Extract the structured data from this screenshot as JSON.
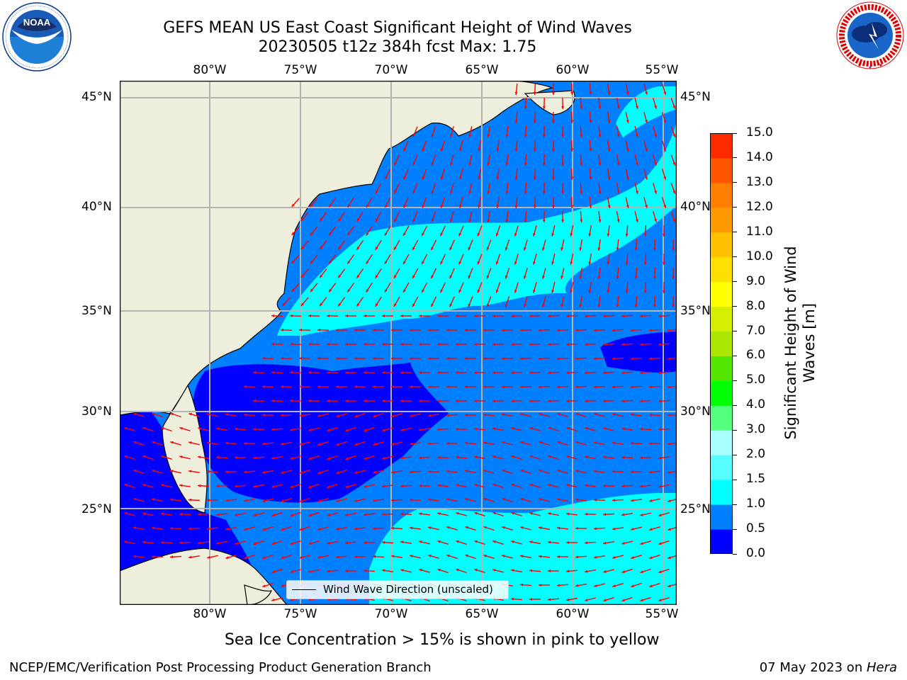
{
  "header": {
    "title_line1": "GEFS MEAN US East Coast Significant Height of Wind Waves",
    "title_line2": "20230505 t12z 384h fcst   Max: 1.75"
  },
  "logos": {
    "left": {
      "name": "NOAA",
      "ring_text": "NATIONAL OCEANIC AND ATMOSPHERIC ADMINISTRATION · U.S. DEPARTMENT OF COMMERCE"
    },
    "right": {
      "name": "NATIONAL WEATHER SERVICE"
    }
  },
  "map": {
    "lon_labels": [
      "80°W",
      "75°W",
      "70°W",
      "65°W",
      "60°W",
      "55°W"
    ],
    "lat_labels": [
      "45°N",
      "40°N",
      "35°N",
      "30°N",
      "25°N"
    ],
    "legend_label": "Wind Wave Direction (unscaled)",
    "colors": {
      "land": "#eeeedc",
      "coast": "#000000",
      "grid": "#b4b4b4",
      "arrow": "#ff0000"
    }
  },
  "colorbar": {
    "title_line1": "Significant Height of Wind",
    "title_line2": "Waves [m]",
    "ticks": [
      "0.0",
      "0.5",
      "1.0",
      "1.5",
      "2.0",
      "3.0",
      "4.0",
      "5.0",
      "6.0",
      "7.0",
      "8.0",
      "9.0",
      "10.0",
      "11.0",
      "12.0",
      "13.0",
      "14.0",
      "15.0"
    ],
    "colors": [
      "#0000ff",
      "#0080ff",
      "#00ffff",
      "#55ffff",
      "#aaffff",
      "#55ff80",
      "#00ff00",
      "#55e600",
      "#aae600",
      "#d4f000",
      "#ffff00",
      "#ffe000",
      "#ffc000",
      "#ff9900",
      "#ff7f00",
      "#ff5500",
      "#ff2a00"
    ]
  },
  "notes": {
    "sea_ice": "Sea Ice Concentration > 15% is shown in pink to yellow",
    "footer_left": "NCEP/EMC/Verification Post Processing Product Generation Branch",
    "footer_right_prefix": "07 May 2023 on ",
    "footer_right_host": "Hera"
  }
}
